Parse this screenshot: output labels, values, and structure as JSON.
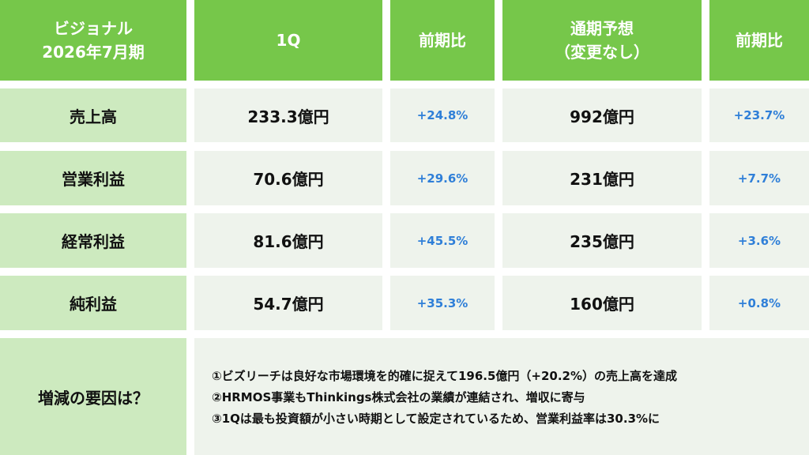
{
  "header": {
    "company": "ビジョナル",
    "period": "2026年7月期",
    "q1": "1Q",
    "yoy1": "前期比",
    "forecast_line1": "通期予想",
    "forecast_line2": "（変更なし）",
    "yoy2": "前期比"
  },
  "rows": [
    {
      "label": "売上高",
      "q1": "233.3億円",
      "q1_yoy": "+24.8%",
      "fy": "992億円",
      "fy_yoy": "+23.7%"
    },
    {
      "label": "営業利益",
      "q1": "70.6億円",
      "q1_yoy": "+29.6%",
      "fy": "231億円",
      "fy_yoy": "+7.7%"
    },
    {
      "label": "経常利益",
      "q1": "81.6億円",
      "q1_yoy": "+45.5%",
      "fy": "235億円",
      "fy_yoy": "+3.6%"
    },
    {
      "label": "純利益",
      "q1": "54.7億円",
      "q1_yoy": "+35.3%",
      "fy": "160億円",
      "fy_yoy": "+0.8%"
    }
  ],
  "reasons": {
    "label": "増減の要因は？",
    "lines": [
      "①ビズリーチは良好な市場環境を的確に捉えて196.5億円（+20.2%）の売上高を達成",
      "②HRMOS事業もThinkings株式会社の業績が連結され、増収に寄与",
      "③1Qは最も投資額が小さい時期として設定されているため、営業利益率は30.3%に"
    ]
  },
  "colors": {
    "header_green": "#76c74a",
    "label_green": "#cdeabf",
    "cell_bg": "#eef3ec",
    "percent_blue": "#2f7fd8"
  }
}
